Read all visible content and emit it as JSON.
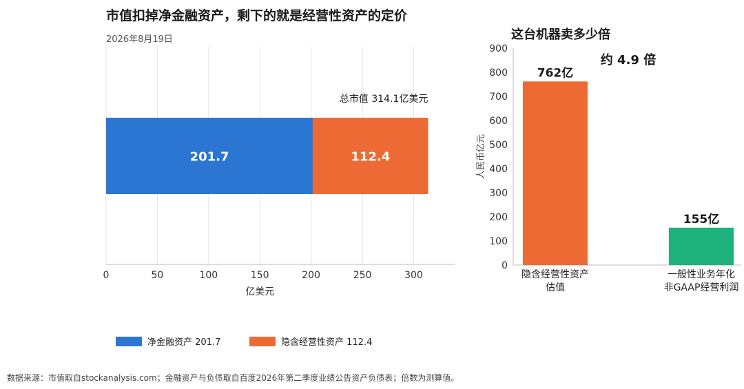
{
  "left_title": "市值扣掉净金融资产，剩下的就是经营性资产的定价",
  "left_date": "2026年8月19日",
  "right_title": "这台机器卖多少倍",
  "source_note": "数据来源：市值取自stockanalysis.com；金融资产与负债取自百度2026年第二季度业绩公告资产负债表；倍数为测算值。",
  "legend": [
    {
      "label": "净金融资产 201.7",
      "color": "#2b76d2"
    },
    {
      "label": "隐含经营性资产 112.4",
      "color": "#ee6a35"
    }
  ],
  "chart_data": [
    {
      "type": "bar",
      "orientation": "horizontal",
      "stacked": true,
      "title": "市值扣掉净金融资产，剩下的就是经营性资产的定价",
      "subtitle": "2026年8月19日",
      "xlabel": "亿美元",
      "ylabel": "",
      "xlim": [
        0,
        340
      ],
      "xticks": [
        0,
        50,
        100,
        150,
        200,
        250,
        300
      ],
      "grid": true,
      "legend_position": "bottom",
      "series": [
        {
          "name": "净金融资产 201.7",
          "values": [
            201.7
          ],
          "label": "201.7",
          "color": "#2b76d2"
        },
        {
          "name": "隐含经营性资产 112.4",
          "values": [
            112.4
          ],
          "label": "112.4",
          "color": "#ee6a35"
        }
      ],
      "annotation": "总市值 314.1亿美元"
    },
    {
      "type": "bar",
      "title": "这台机器卖多少倍",
      "ylabel": "人民币亿元",
      "xlabel": "",
      "ylim": [
        0,
        900
      ],
      "yticks": [
        0,
        100,
        200,
        300,
        400,
        500,
        600,
        700,
        800,
        900
      ],
      "categories": [
        [
          "隐含经营性资产",
          "估值"
        ],
        [
          "一般性业务年化",
          "非GAAP经营利润"
        ]
      ],
      "values": [
        762,
        155
      ],
      "value_labels": [
        "762亿",
        "155亿"
      ],
      "colors": [
        "#ee6a35",
        "#1fb27c"
      ],
      "annotation": "约 4.9 倍",
      "grid": false
    }
  ]
}
